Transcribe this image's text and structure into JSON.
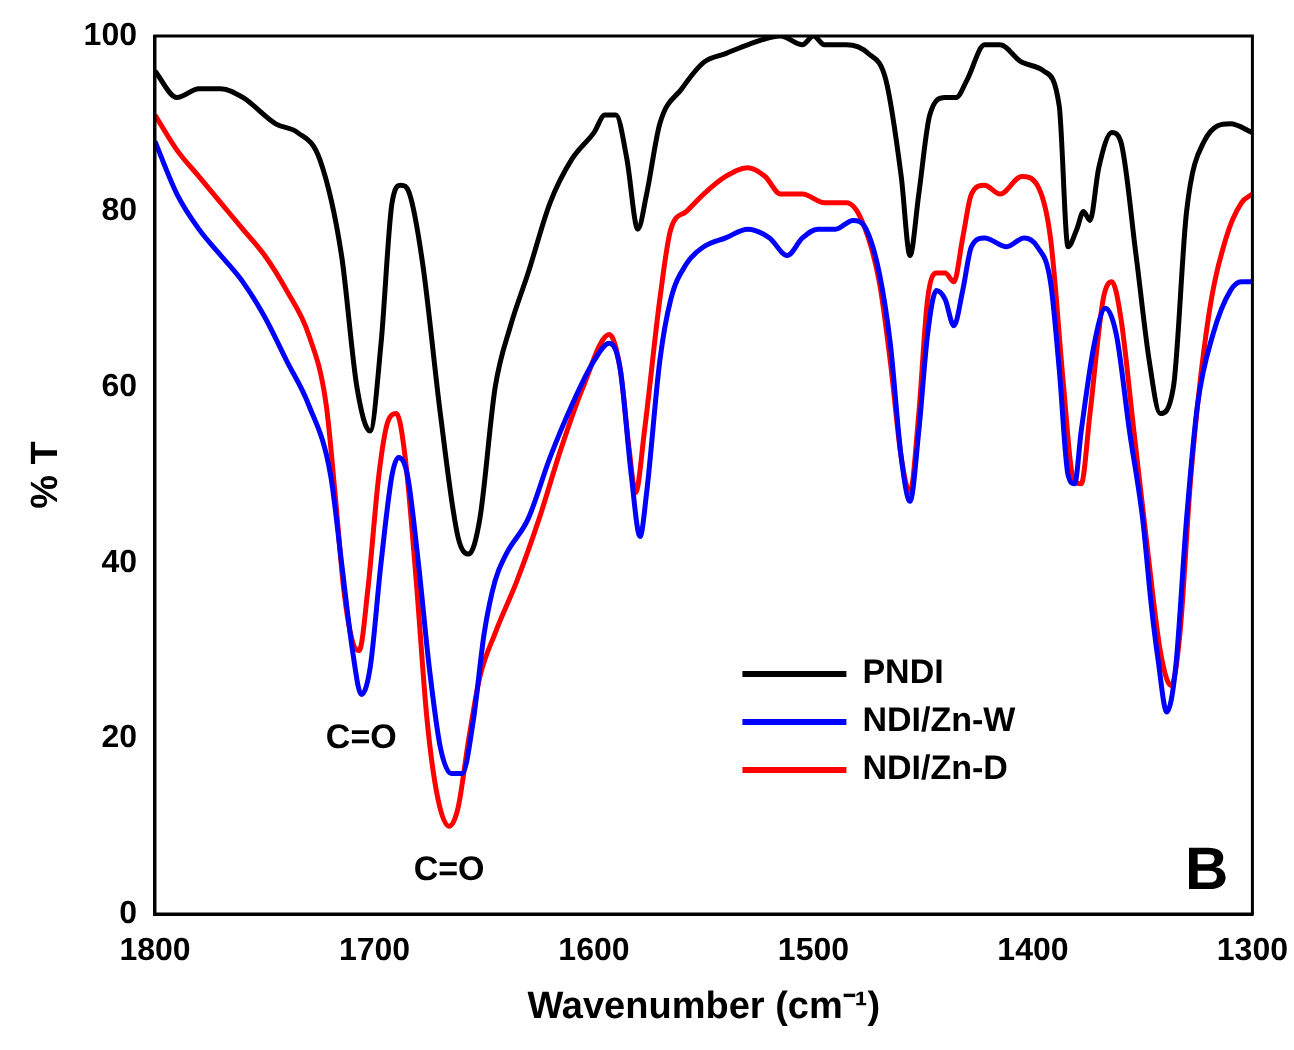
{
  "chart_data": {
    "type": "line",
    "xlabel": "Wavenumber (cm⁻¹)",
    "ylabel": "% T",
    "xlim": [
      1800,
      1300
    ],
    "xticks": [
      1800,
      1700,
      1600,
      1500,
      1400,
      1300
    ],
    "ylim": [
      0,
      100
    ],
    "yticks": [
      0,
      20,
      40,
      60,
      80,
      100
    ],
    "grid": false,
    "legend": "bottom right",
    "marker": "none",
    "line_style": "solid",
    "annotations": [
      {
        "text": "C=O",
        "x": 1706,
        "y": 25
      },
      {
        "text": "C=O",
        "x": 1666,
        "y": 10
      },
      "B"
    ],
    "series": [
      {
        "name": "PNDI",
        "color": "#000000",
        "x": [
          1800,
          1790,
          1780,
          1770,
          1760,
          1745,
          1735,
          1725,
          1715,
          1708,
          1702,
          1697,
          1692,
          1688,
          1684,
          1678,
          1670,
          1662,
          1657,
          1652,
          1645,
          1638,
          1630,
          1620,
          1610,
          1600,
          1595,
          1590,
          1585,
          1580,
          1576,
          1570,
          1560,
          1550,
          1540,
          1530,
          1515,
          1505,
          1500,
          1495,
          1485,
          1475,
          1467,
          1460,
          1456,
          1452,
          1447,
          1440,
          1435,
          1430,
          1422,
          1415,
          1405,
          1395,
          1388,
          1384,
          1380,
          1377,
          1374,
          1370,
          1364,
          1360,
          1353,
          1347,
          1342,
          1336,
          1330,
          1322,
          1310,
          1300
        ],
        "values": [
          96,
          93,
          94,
          94,
          93,
          90,
          89,
          86,
          75,
          60,
          55,
          65,
          81,
          83,
          82,
          74,
          57,
          43,
          41,
          45,
          60,
          67,
          73,
          81,
          86,
          89,
          91,
          91,
          86,
          78,
          82,
          90,
          94,
          97,
          98,
          99,
          100,
          99,
          100,
          99,
          99,
          98,
          95,
          84,
          75,
          82,
          91,
          93,
          93,
          95,
          99,
          99,
          97,
          96,
          92,
          76,
          78,
          80,
          79,
          85,
          89,
          88,
          75,
          63,
          57,
          60,
          80,
          88,
          90,
          89
        ]
      },
      {
        "name": "NDI/Zn-W",
        "color": "#0000ff",
        "x": [
          1800,
          1790,
          1780,
          1770,
          1760,
          1750,
          1740,
          1730,
          1720,
          1715,
          1710,
          1706,
          1702,
          1697,
          1692,
          1689,
          1685,
          1680,
          1675,
          1670,
          1665,
          1660,
          1655,
          1650,
          1645,
          1640,
          1630,
          1620,
          1610,
          1600,
          1593,
          1588,
          1583,
          1579,
          1576,
          1570,
          1565,
          1558,
          1550,
          1540,
          1530,
          1520,
          1512,
          1505,
          1498,
          1490,
          1482,
          1476,
          1470,
          1465,
          1460,
          1456,
          1452,
          1448,
          1444,
          1440,
          1436,
          1432,
          1428,
          1422,
          1412,
          1404,
          1398,
          1392,
          1388,
          1384,
          1381,
          1378,
          1372,
          1367,
          1362,
          1356,
          1350,
          1346,
          1343,
          1339,
          1335,
          1330,
          1325,
          1318,
          1310,
          1305,
          1300
        ],
        "values": [
          88,
          82,
          78,
          75,
          72,
          68,
          63,
          58,
          50,
          40,
          30,
          25,
          28,
          40,
          50,
          52,
          50,
          40,
          28,
          19,
          16,
          16,
          22,
          32,
          38,
          41,
          45,
          52,
          58,
          63,
          65,
          62,
          50,
          43,
          48,
          63,
          70,
          74,
          76,
          77,
          78,
          77,
          75,
          77,
          78,
          78,
          79,
          78,
          73,
          65,
          52,
          47,
          55,
          66,
          71,
          70,
          67,
          71,
          76,
          77,
          76,
          77,
          76,
          72,
          62,
          50,
          49,
          55,
          65,
          69,
          66,
          55,
          45,
          35,
          29,
          23,
          28,
          45,
          58,
          66,
          71,
          72,
          72
        ]
      },
      {
        "name": "NDI/Zn-D",
        "color": "#ff0000",
        "x": [
          1800,
          1790,
          1780,
          1770,
          1760,
          1750,
          1740,
          1730,
          1722,
          1718,
          1714,
          1710,
          1707,
          1703,
          1698,
          1694,
          1690,
          1686,
          1681,
          1676,
          1671,
          1666,
          1662,
          1657,
          1652,
          1645,
          1635,
          1625,
          1615,
          1605,
          1593,
          1588,
          1584,
          1581,
          1577,
          1570,
          1565,
          1558,
          1550,
          1540,
          1530,
          1522,
          1515,
          1505,
          1495,
          1485,
          1478,
          1470,
          1465,
          1460,
          1456,
          1452,
          1448,
          1444,
          1440,
          1436,
          1432,
          1428,
          1422,
          1415,
          1405,
          1398,
          1392,
          1386,
          1382,
          1378,
          1374,
          1368,
          1364,
          1360,
          1354,
          1348,
          1342,
          1337,
          1333,
          1328,
          1320,
          1312,
          1305,
          1300
        ],
        "values": [
          91,
          87,
          84,
          81,
          78,
          75,
          71,
          66,
          58,
          48,
          37,
          31,
          30,
          37,
          50,
          56,
          57,
          52,
          38,
          22,
          13,
          10,
          12,
          20,
          27,
          32,
          38,
          45,
          53,
          60,
          66,
          62,
          53,
          48,
          55,
          70,
          78,
          80,
          82,
          84,
          85,
          84,
          82,
          82,
          81,
          81,
          79,
          72,
          63,
          52,
          48,
          57,
          70,
          73,
          73,
          72,
          77,
          82,
          83,
          82,
          84,
          83,
          77,
          60,
          50,
          49,
          57,
          70,
          72,
          68,
          55,
          42,
          30,
          26,
          32,
          50,
          68,
          77,
          81,
          82
        ]
      }
    ]
  }
}
